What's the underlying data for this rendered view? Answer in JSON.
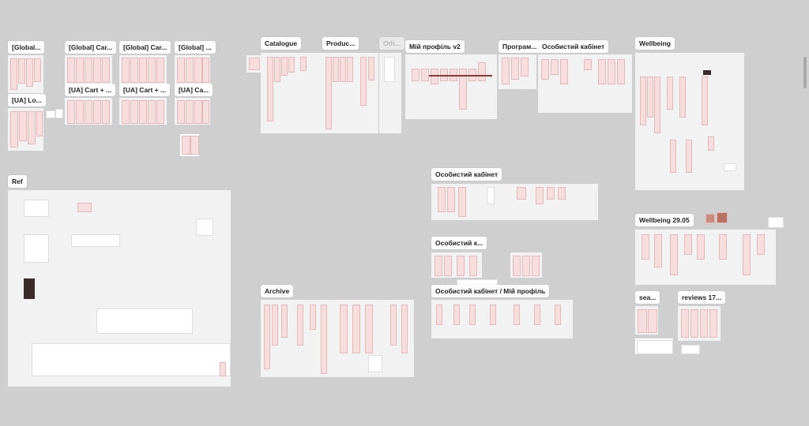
{
  "frames": [
    {
      "key": "global-1",
      "label": "[Global..."
    },
    {
      "key": "global-cart-1",
      "label": "[Global] Car..."
    },
    {
      "key": "global-cart-2",
      "label": "[Global] Car..."
    },
    {
      "key": "global-4",
      "label": "[Global] ..."
    },
    {
      "key": "ua-lo",
      "label": "[UA] Lo..."
    },
    {
      "key": "ua-cart-1",
      "label": "[UA] Cart + ..."
    },
    {
      "key": "ua-cart-2",
      "label": "[UA] Cart + ..."
    },
    {
      "key": "ua-ca",
      "label": "[UA] Ca..."
    },
    {
      "key": "catalogue",
      "label": "Catalogue"
    },
    {
      "key": "produc",
      "label": "Produc..."
    },
    {
      "key": "oth",
      "label": "Oth..."
    },
    {
      "key": "my-profile-v2",
      "label": "Мій профіль v2"
    },
    {
      "key": "program",
      "label": "Програм..."
    },
    {
      "key": "personal-cabinet-1",
      "label": "Особистий кабінет"
    },
    {
      "key": "wellbeing",
      "label": "Wellbeing"
    },
    {
      "key": "ref",
      "label": "Ref"
    },
    {
      "key": "personal-cabinet-2",
      "label": "Особистий кабінет"
    },
    {
      "key": "personal-cabinet-3",
      "label": "Особистий к..."
    },
    {
      "key": "wellbeing-2905",
      "label": "Wellbeing 29.05"
    },
    {
      "key": "archive",
      "label": "Archive"
    },
    {
      "key": "personal-cabinet-profile",
      "label": "Особистий кабінет / Мій профіль"
    },
    {
      "key": "sea",
      "label": "sea..."
    },
    {
      "key": "reviews",
      "label": "reviews 17..."
    }
  ],
  "colors": {
    "canvas": "#cfcfcf",
    "frame": "#f2f2f2",
    "screen": "#f7dede",
    "accent": "#8b3a3a"
  }
}
